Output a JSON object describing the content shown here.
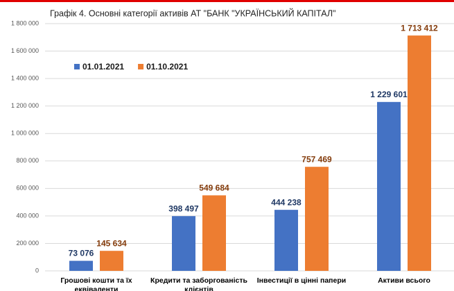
{
  "chart_data": {
    "type": "bar",
    "title": "Графік 4. Основні категорії активів АТ \"БАНК \"УКРАЇНСЬКИЙ КАПІТАЛ\"",
    "categories": [
      "Грошові кошти та їх еквіваленти",
      "Кредити та заборгованість клієнтів",
      "Інвестиції в цінні папери",
      "Активи всього"
    ],
    "series": [
      {
        "name": "01.01.2021",
        "color": "#4472c4",
        "label_color": "#1f3864",
        "values": [
          73076,
          398497,
          444238,
          1229601
        ],
        "value_labels": [
          "73 076",
          "398 497",
          "444 238",
          "1 229 601"
        ]
      },
      {
        "name": "01.10.2021",
        "color": "#ed7d31",
        "label_color": "#843c0c",
        "values": [
          145634,
          549684,
          757469,
          1713412
        ],
        "value_labels": [
          "145 634",
          "549 684",
          "757 469",
          "1 713 412"
        ]
      }
    ],
    "ylim": [
      0,
      1800000
    ],
    "yticks": [
      0,
      {
        "value": 200000,
        "label": "200 000"
      },
      {
        "value": 400000,
        "label": "400 000"
      },
      {
        "value": 600000,
        "label": "600 000"
      },
      {
        "value": 800000,
        "label": "800 000"
      },
      {
        "value": 1000000,
        "label": "1 000 000"
      },
      {
        "value": 1200000,
        "label": "1 200 000"
      },
      {
        "value": 1400000,
        "label": "1 400 000"
      },
      {
        "value": 1600000,
        "label": "1 600 000"
      },
      {
        "value": 1800000,
        "label": "1 800 000"
      }
    ],
    "grid": true,
    "legend": "top-left"
  }
}
